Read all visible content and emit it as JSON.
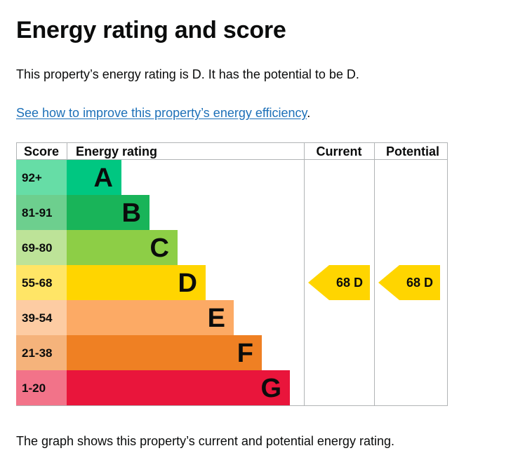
{
  "page": {
    "title": "Energy rating and score",
    "summary": "This property’s energy rating is D. It has the potential to be D.",
    "improve_link": "See how to improve this property’s energy efficiency",
    "improve_suffix": ".",
    "footer": "The graph shows this property’s current and potential energy rating."
  },
  "chart_data": {
    "type": "table",
    "headers": {
      "score": "Score",
      "rating": "Energy rating",
      "current": "Current",
      "potential": "Potential"
    },
    "bands": [
      {
        "score": "92+",
        "letter": "A",
        "color": "#00c781",
        "score_bg": "#66dda6"
      },
      {
        "score": "81-91",
        "letter": "B",
        "color": "#19b459",
        "score_bg": "#6dcf8e"
      },
      {
        "score": "69-80",
        "letter": "C",
        "color": "#8dce46",
        "score_bg": "#bde398"
      },
      {
        "score": "55-68",
        "letter": "D",
        "color": "#ffd500",
        "score_bg": "#ffe566"
      },
      {
        "score": "39-54",
        "letter": "E",
        "color": "#fcaa65",
        "score_bg": "#fdcca3"
      },
      {
        "score": "21-38",
        "letter": "F",
        "color": "#ef8023",
        "score_bg": "#f5b37b"
      },
      {
        "score": "1-20",
        "letter": "G",
        "color": "#e9153b",
        "score_bg": "#f27389"
      }
    ],
    "current": {
      "score": 68,
      "letter": "D",
      "label": "68  D"
    },
    "potential": {
      "score": 68,
      "letter": "D",
      "label": "68  D"
    },
    "colors": {
      "border": "#b1b4b6",
      "text": "#0b0c0c"
    }
  }
}
